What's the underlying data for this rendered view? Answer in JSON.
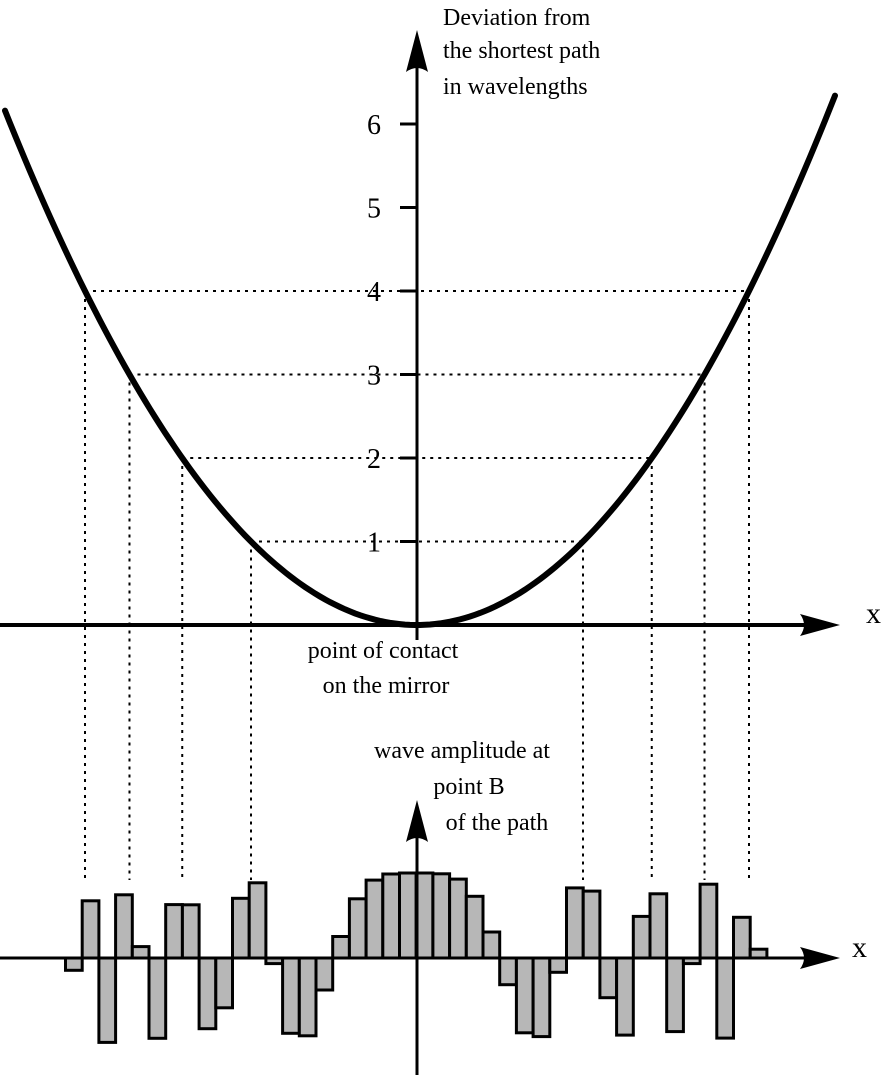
{
  "upper_plot": {
    "y_axis_label_lines": [
      "Deviation from",
      "the shortest path",
      "in wavelengths"
    ],
    "y_ticks": [
      "1",
      "2",
      "3",
      "4",
      "5",
      "6"
    ],
    "x_axis_label": "x",
    "contact_label_lines": [
      "point of contact",
      "on the mirror"
    ]
  },
  "lower_plot": {
    "y_axis_label_lines": [
      "wave amplitude at",
      "point B",
      "of the path"
    ],
    "x_axis_label": "x"
  },
  "colors": {
    "bar_fill": "#b7b7b7",
    "stroke": "#000000"
  }
}
